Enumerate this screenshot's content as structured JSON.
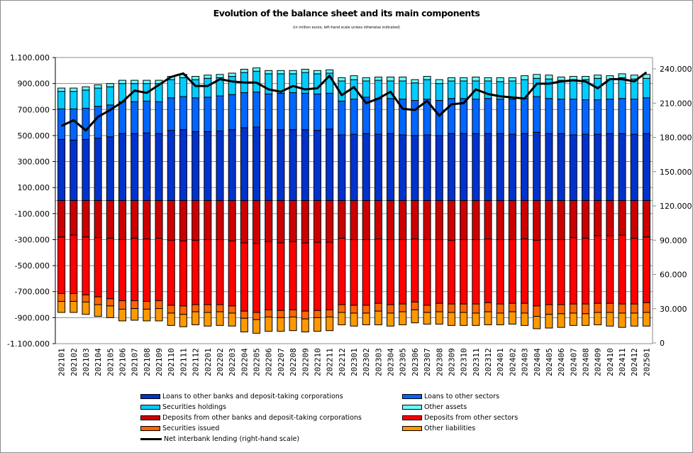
{
  "chart_data": {
    "type": "bar",
    "subtype": "stacked-bar-with-line",
    "title": "Evolution of the balance sheet and its main components",
    "subtitle": "(in million euros; left-hand scale unless otherwise indicated)",
    "xlabel": "",
    "ylabel": "",
    "ylim": [
      -1100000,
      1100000
    ],
    "y2lim": [
      0,
      240000
    ],
    "yticks": [
      "1.100.000",
      "900.000",
      "700.000",
      "500.000",
      "300.000",
      "100.000",
      "-100.000",
      "-300.000",
      "-500.000",
      "-700.000",
      "-900.000",
      "-1.100.000"
    ],
    "ytick_values": [
      1100000,
      900000,
      700000,
      500000,
      300000,
      100000,
      -100000,
      -300000,
      -500000,
      -700000,
      -900000,
      -1100000
    ],
    "y2ticks": [
      "240.000",
      "210.000",
      "180.000",
      "150.000",
      "120.000",
      "90.000",
      "60.000",
      "30.000",
      "0"
    ],
    "y2tick_values": [
      240000,
      210000,
      180000,
      150000,
      120000,
      90000,
      60000,
      30000,
      0
    ],
    "grid": true,
    "legend_position": "bottom",
    "categories": [
      "202101",
      "202102",
      "202103",
      "202104",
      "202105",
      "202106",
      "202107",
      "202108",
      "202109",
      "202110",
      "202111",
      "202112",
      "202201",
      "202202",
      "202203",
      "202204",
      "202205",
      "202206",
      "202207",
      "202208",
      "202209",
      "202210",
      "202211",
      "202212",
      "202301",
      "202302",
      "202303",
      "202304",
      "202305",
      "202306",
      "202307",
      "202308",
      "202309",
      "202310",
      "202311",
      "202312",
      "202401",
      "202402",
      "202403",
      "202404",
      "202405",
      "202406",
      "202407",
      "202408",
      "202409",
      "202410",
      "202411",
      "202412",
      "202501"
    ],
    "series": [
      {
        "name": "Loans to other banks and deposit-taking corporations",
        "type": "bar",
        "axis": "left",
        "color": "#0033cc",
        "values": [
          470000,
          465000,
          470000,
          480000,
          490000,
          515000,
          515000,
          520000,
          515000,
          540000,
          545000,
          530000,
          530000,
          535000,
          545000,
          560000,
          565000,
          545000,
          545000,
          545000,
          545000,
          540000,
          550000,
          505000,
          510000,
          515000,
          510000,
          515000,
          505000,
          500000,
          505000,
          500000,
          515000,
          515000,
          515000,
          515000,
          515000,
          510000,
          515000,
          525000,
          515000,
          515000,
          505000,
          510000,
          510000,
          515000,
          515000,
          510000,
          515000
        ]
      },
      {
        "name": "Loans to other sectors",
        "type": "bar",
        "axis": "left",
        "color": "#0066ff",
        "values": [
          235000,
          240000,
          240000,
          245000,
          245000,
          245000,
          245000,
          245000,
          245000,
          250000,
          255000,
          260000,
          265000,
          270000,
          270000,
          270000,
          270000,
          275000,
          280000,
          285000,
          280000,
          280000,
          275000,
          260000,
          270000,
          280000,
          275000,
          270000,
          275000,
          270000,
          275000,
          270000,
          270000,
          270000,
          265000,
          270000,
          265000,
          270000,
          270000,
          275000,
          270000,
          265000,
          275000,
          265000,
          265000,
          265000,
          270000,
          270000,
          275000
        ]
      },
      {
        "name": "Securities holdings",
        "type": "bar",
        "axis": "left",
        "color": "#00ccff",
        "values": [
          135000,
          135000,
          140000,
          140000,
          140000,
          140000,
          140000,
          135000,
          140000,
          140000,
          145000,
          140000,
          145000,
          140000,
          140000,
          155000,
          160000,
          155000,
          150000,
          145000,
          160000,
          155000,
          155000,
          155000,
          150000,
          125000,
          140000,
          135000,
          140000,
          135000,
          150000,
          130000,
          135000,
          135000,
          140000,
          135000,
          135000,
          140000,
          145000,
          140000,
          150000,
          145000,
          150000,
          155000,
          165000,
          150000,
          160000,
          155000,
          150000
        ]
      },
      {
        "name": "Other assets",
        "type": "bar",
        "axis": "left",
        "color": "#66ffff",
        "values": [
          25000,
          25000,
          25000,
          25000,
          25000,
          25000,
          25000,
          25000,
          25000,
          25000,
          25000,
          25000,
          25000,
          25000,
          25000,
          25000,
          25000,
          25000,
          25000,
          25000,
          25000,
          25000,
          25000,
          25000,
          30000,
          25000,
          25000,
          30000,
          30000,
          25000,
          25000,
          30000,
          25000,
          25000,
          30000,
          25000,
          30000,
          25000,
          30000,
          30000,
          30000,
          25000,
          25000,
          25000,
          25000,
          30000,
          30000,
          30000,
          30000
        ]
      },
      {
        "name": "Deposits from other banks and deposit-taking corporations",
        "type": "bar",
        "axis": "left",
        "color": "#cc0000",
        "values": [
          -280000,
          -265000,
          -280000,
          -285000,
          -290000,
          -300000,
          -290000,
          -295000,
          -290000,
          -305000,
          -310000,
          -305000,
          -300000,
          -300000,
          -310000,
          -325000,
          -330000,
          -315000,
          -325000,
          -315000,
          -325000,
          -320000,
          -320000,
          -290000,
          -300000,
          -300000,
          -295000,
          -300000,
          -300000,
          -295000,
          -300000,
          -300000,
          -305000,
          -300000,
          -300000,
          -295000,
          -300000,
          -300000,
          -295000,
          -305000,
          -300000,
          -300000,
          -285000,
          -290000,
          -270000,
          -270000,
          -265000,
          -290000,
          -280000
        ]
      },
      {
        "name": "Deposits from other sectors",
        "type": "bar",
        "axis": "left",
        "color": "#ff0000",
        "values": [
          -435000,
          -450000,
          -445000,
          -455000,
          -465000,
          -470000,
          -480000,
          -480000,
          -480000,
          -500000,
          -500000,
          -495000,
          -500000,
          -500000,
          -500000,
          -525000,
          -530000,
          -525000,
          -520000,
          -525000,
          -525000,
          -525000,
          -520000,
          -510000,
          -505000,
          -505000,
          -495000,
          -500000,
          -495000,
          -485000,
          -505000,
          -490000,
          -490000,
          -495000,
          -495000,
          -490000,
          -495000,
          -490000,
          -495000,
          -505000,
          -500000,
          -500000,
          -510000,
          -505000,
          -520000,
          -520000,
          -530000,
          -505000,
          -505000
        ]
      },
      {
        "name": "Securities issued",
        "type": "bar",
        "axis": "left",
        "color": "#ff6600",
        "values": [
          -60000,
          -60000,
          -55000,
          -60000,
          -55000,
          -65000,
          -60000,
          -60000,
          -60000,
          -60000,
          -65000,
          -55000,
          -60000,
          -55000,
          -55000,
          -55000,
          -55000,
          -55000,
          -55000,
          -55000,
          -60000,
          -55000,
          -55000,
          -60000,
          -60000,
          -60000,
          -60000,
          -65000,
          -60000,
          -60000,
          -55000,
          -65000,
          -65000,
          -65000,
          -70000,
          -70000,
          -70000,
          -65000,
          -75000,
          -80000,
          -75000,
          -70000,
          -70000,
          -75000,
          -70000,
          -70000,
          -70000,
          -70000,
          -75000
        ]
      },
      {
        "name": "Other liabilities",
        "type": "bar",
        "axis": "left",
        "color": "#ff9900",
        "values": [
          -85000,
          -85000,
          -95000,
          -90000,
          -90000,
          -90000,
          -90000,
          -90000,
          -95000,
          -95000,
          -95000,
          -100000,
          -105000,
          -105000,
          -100000,
          -105000,
          -105000,
          -110000,
          -105000,
          -105000,
          -100000,
          -105000,
          -105000,
          -95000,
          -100000,
          -90000,
          -105000,
          -100000,
          -100000,
          -100000,
          -90000,
          -95000,
          -100000,
          -100000,
          -95000,
          -100000,
          -90000,
          -95000,
          -95000,
          -95000,
          -105000,
          -105000,
          -95000,
          -90000,
          -95000,
          -105000,
          -110000,
          -100000,
          -105000
        ]
      },
      {
        "name": "Net interbank lending (right-hand scale)",
        "type": "line",
        "axis": "right",
        "color": "#000000",
        "values": [
          190000,
          195000,
          186000,
          198000,
          204000,
          211000,
          221000,
          219000,
          226000,
          233000,
          236000,
          225000,
          225000,
          231000,
          229000,
          228000,
          228000,
          222000,
          220000,
          225000,
          222000,
          223000,
          234000,
          217000,
          224000,
          210000,
          214000,
          220000,
          205000,
          204000,
          212000,
          199000,
          209000,
          210000,
          222000,
          218000,
          216000,
          215000,
          214000,
          227000,
          227000,
          229000,
          230000,
          229000,
          223000,
          231000,
          231000,
          229000,
          237000
        ]
      }
    ]
  }
}
